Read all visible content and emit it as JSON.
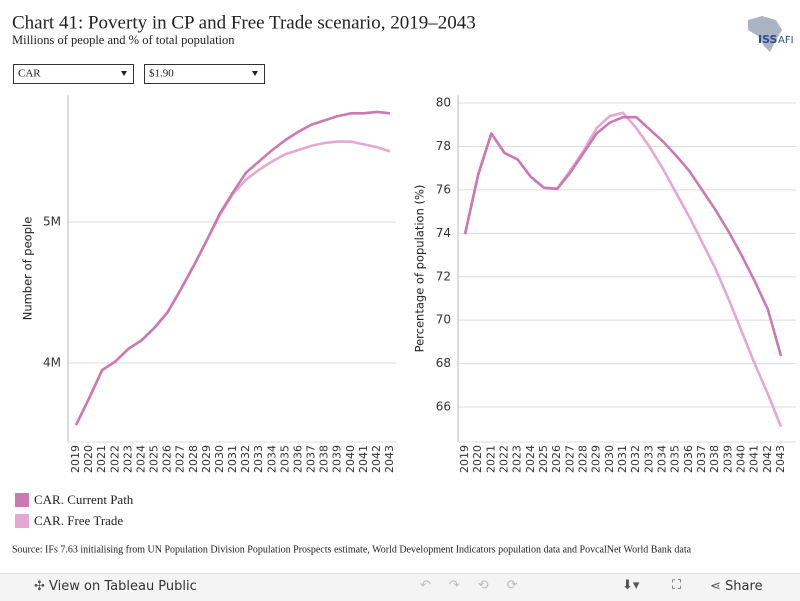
{
  "header": {
    "title": "Chart 41: Poverty in CP and Free Trade scenario, 2019–2043",
    "subtitle": "Millions of people and % of total population",
    "logo": [
      "ISS",
      "AFI"
    ]
  },
  "filters": [
    "CAR",
    "$1.90"
  ],
  "chart_data": [
    {
      "type": "line",
      "y_label": "Number of people",
      "categories": [
        "2019",
        "2020",
        "2021",
        "2022",
        "2023",
        "2024",
        "2025",
        "2026",
        "2027",
        "2028",
        "2029",
        "2030",
        "2031",
        "2032",
        "2033",
        "2034",
        "2035",
        "2036",
        "2037",
        "2038",
        "2039",
        "2040",
        "2041",
        "2042",
        "2043"
      ],
      "series": [
        {
          "name": "CAR. Current Path",
          "color": "#cc79b3",
          "values": [
            3560000,
            3750000,
            3950000,
            4010000,
            4100000,
            4160000,
            4250000,
            4360000,
            4520000,
            4690000,
            4870000,
            5060000,
            5210000,
            5350000,
            5430000,
            5510000,
            5580000,
            5640000,
            5690000,
            5720000,
            5750000,
            5770000,
            5770000,
            5780000,
            5770000
          ]
        },
        {
          "name": "CAR. Free Trade",
          "color": "#e4a8d2",
          "values": [
            3560000,
            3750000,
            3950000,
            4010000,
            4100000,
            4160000,
            4250000,
            4360000,
            4520000,
            4690000,
            4870000,
            5050000,
            5200000,
            5300000,
            5370000,
            5430000,
            5480000,
            5510000,
            5540000,
            5560000,
            5570000,
            5570000,
            5550000,
            5530000,
            5500000
          ]
        }
      ],
      "ylim": [
        3440000,
        5900000
      ],
      "yticks": [
        {
          "value": 4000000,
          "label": "4M"
        },
        {
          "value": 5000000,
          "label": "5M"
        }
      ],
      "grid": true
    },
    {
      "type": "line",
      "y_label": "Percentage of population (%)",
      "categories": [
        "2019",
        "2020",
        "2021",
        "2022",
        "2023",
        "2024",
        "2025",
        "2026",
        "2027",
        "2028",
        "2029",
        "2030",
        "2031",
        "2032",
        "2033",
        "2034",
        "2035",
        "2036",
        "2037",
        "2038",
        "2039",
        "2040",
        "2041",
        "2042",
        "2043"
      ],
      "series": [
        {
          "name": "CAR. Current Path",
          "color": "#cc79b3",
          "values": [
            73.96,
            76.7,
            78.6,
            77.7,
            77.4,
            76.6,
            76.1,
            76.05,
            76.8,
            77.7,
            78.6,
            79.1,
            79.35,
            79.35,
            78.8,
            78.25,
            77.6,
            76.9,
            76.0,
            75.1,
            74.1,
            73.0,
            71.8,
            70.5,
            68.35
          ]
        },
        {
          "name": "CAR. Free Trade",
          "color": "#e4a8d2",
          "values": [
            73.96,
            76.7,
            78.6,
            77.7,
            77.4,
            76.6,
            76.1,
            76.05,
            76.9,
            77.8,
            78.85,
            79.4,
            79.55,
            78.85,
            78.0,
            77.0,
            75.9,
            74.8,
            73.6,
            72.4,
            71.0,
            69.5,
            68.0,
            66.6,
            65.1
          ]
        }
      ],
      "ylim": [
        64.39,
        80.37
      ],
      "yticks": [
        66,
        68,
        70,
        72,
        74,
        76,
        78,
        80
      ],
      "grid": true
    }
  ],
  "source": "Source: IFs 7.63 initialising from UN Population Division Population Prospects estimate, World Development Indicators population data and PovcalNet World Bank data",
  "toolbar": {
    "view": "View on Tableau Public",
    "share": "Share"
  }
}
